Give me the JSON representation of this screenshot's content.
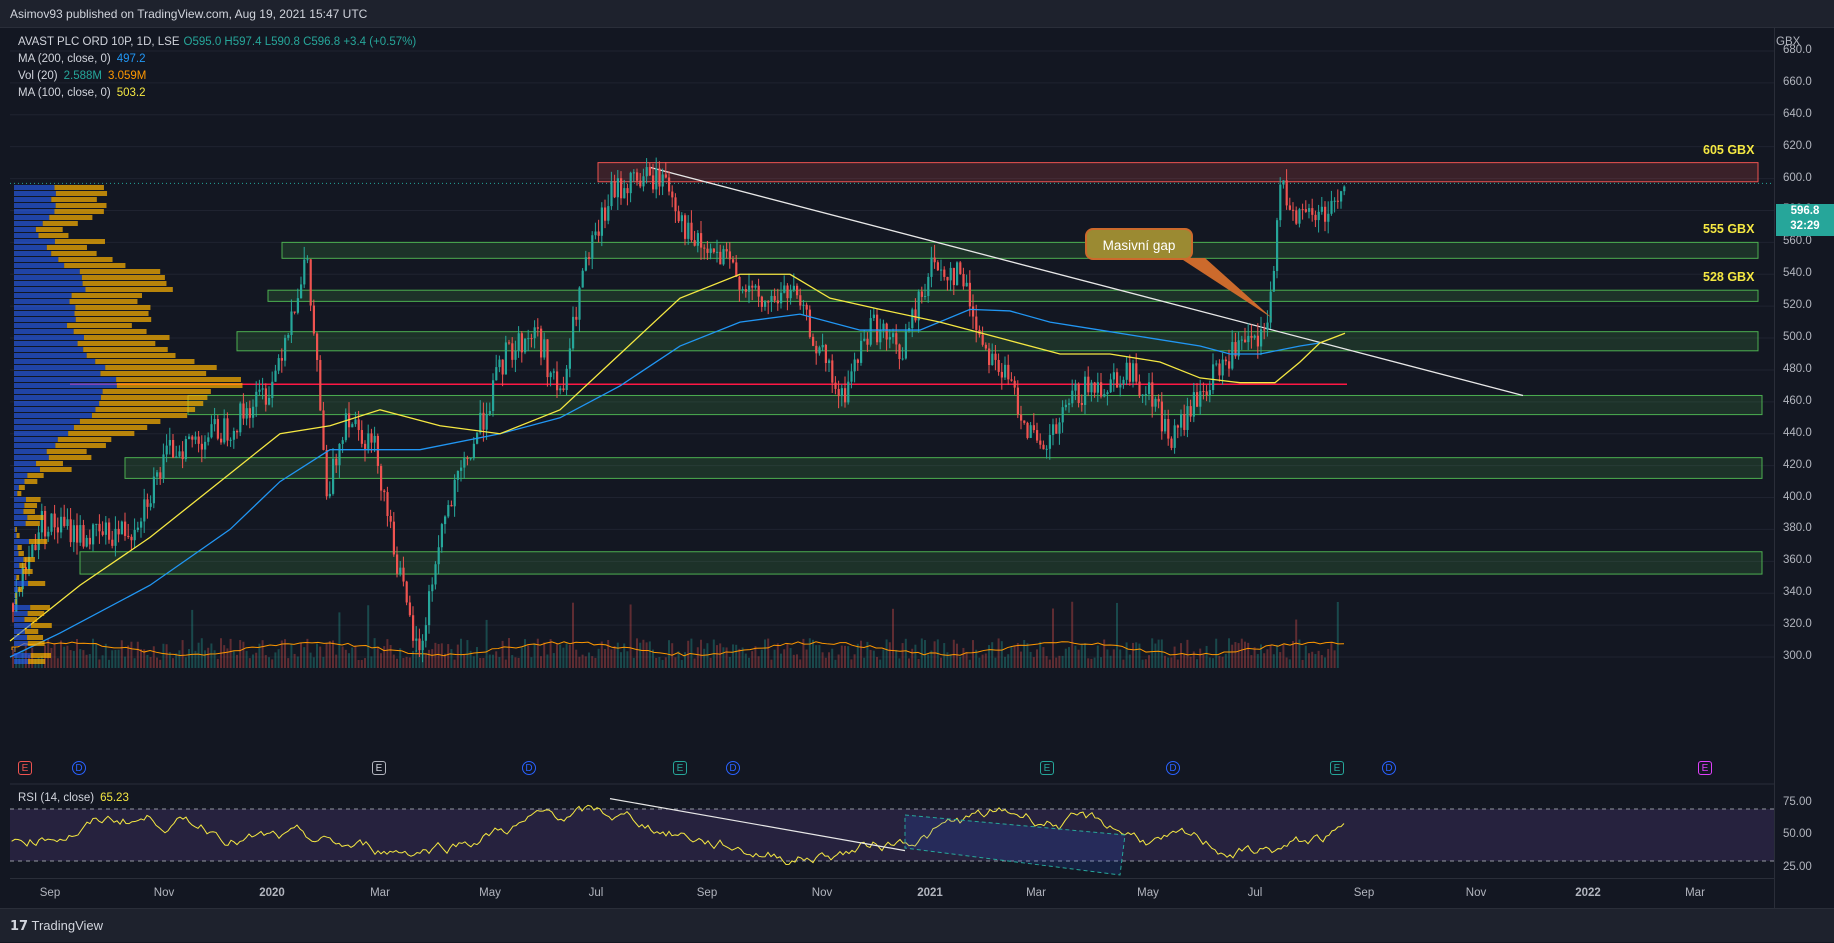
{
  "header": {
    "published": "Asimov93 published on TradingView.com, Aug 19, 2021 15:47 UTC"
  },
  "legend": {
    "symbol": "AVAST PLC ORD 10P, 1D, LSE",
    "ohlc": "O595.0  H597.4  L590.8  C596.8  +3.4 (+0.57%)",
    "ma200_label": "MA (200, close, 0)",
    "ma200_value": "497.2",
    "vol_label": "Vol (20)",
    "vol_value1": "2.588M",
    "vol_value2": "3.059M",
    "ma100_label": "MA (100, close, 0)",
    "ma100_value": "503.2"
  },
  "price_axis": {
    "unit": "GBX",
    "labels": [
      "680.0",
      "660.0",
      "640.0",
      "620.0",
      "600.0",
      "580.0",
      "560.0",
      "540.0",
      "520.0",
      "500.0",
      "480.0",
      "460.0",
      "440.0",
      "420.0",
      "400.0",
      "380.0",
      "360.0",
      "340.0",
      "320.0",
      "300.0"
    ],
    "current_price": "596.8",
    "countdown": "32:29"
  },
  "rsi": {
    "label": "RSI (14, close)",
    "value": "65.23",
    "axis_labels": [
      "75.00",
      "50.00",
      "25.00"
    ]
  },
  "time_axis": [
    "Sep",
    "Nov",
    "2020",
    "Mar",
    "May",
    "Jul",
    "Sep",
    "Nov",
    "2021",
    "Mar",
    "May",
    "Jul",
    "Sep",
    "Nov",
    "2022",
    "Mar"
  ],
  "zones": [
    {
      "label": "605 GBX",
      "from": 598,
      "to": 610,
      "color": "#ef5350"
    },
    {
      "label": "555 GBX",
      "from": 550,
      "to": 560,
      "color": "#4caf50"
    },
    {
      "label": "528 GBX",
      "from": 523,
      "to": 530,
      "color": "#4caf50"
    },
    {
      "label": "",
      "from": 492,
      "to": 504,
      "color": "#4caf50"
    },
    {
      "label": "",
      "from": 452,
      "to": 464,
      "color": "#4caf50"
    },
    {
      "label": "",
      "from": 412,
      "to": 425,
      "color": "#4caf50"
    },
    {
      "label": "",
      "from": 352,
      "to": 366,
      "color": "#4caf50"
    }
  ],
  "annotation": {
    "text": "Masivní gap"
  },
  "events": [
    {
      "type": "E",
      "style": "red"
    },
    {
      "type": "D",
      "style": "d"
    },
    {
      "type": "E",
      "style": "grey"
    },
    {
      "type": "D",
      "style": "d"
    },
    {
      "type": "E",
      "style": "teal"
    },
    {
      "type": "D",
      "style": "d"
    },
    {
      "type": "E",
      "style": "teal"
    },
    {
      "type": "D",
      "style": "d"
    },
    {
      "type": "E",
      "style": "teal"
    },
    {
      "type": "D",
      "style": "d"
    },
    {
      "type": "E",
      "style": "mag"
    }
  ],
  "footer": {
    "brand": "TradingView"
  },
  "colors": {
    "up": "#26a69a",
    "down": "#ef5350",
    "ma200": "#2196f3",
    "ma100": "#f5e842",
    "volume": "#ff9800"
  }
}
